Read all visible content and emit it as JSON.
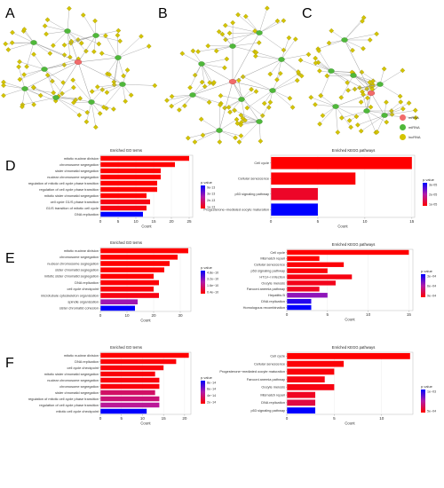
{
  "panel_labels": {
    "A": "A",
    "B": "B",
    "C": "C",
    "D": "D",
    "E": "E",
    "F": "F"
  },
  "network_legend": [
    {
      "label": "mRNA",
      "color": "#f26b6b"
    },
    {
      "label": "miRNA",
      "color": "#4fb83a"
    },
    {
      "label": "lncRNA",
      "color": "#d4c400"
    }
  ],
  "colors": {
    "bar_high": "#ff0000",
    "bar_low": "#0000ff",
    "bar_mid": "#b21aa8",
    "node_lnc": "#d4c400",
    "node_mi": "#4fb83a",
    "node_m": "#f26b6b",
    "edge": "#999999"
  },
  "chart_data": [
    {
      "panel": "D",
      "type": "bar",
      "title": "Enriched GO terms",
      "xlabel": "Count",
      "legend_title": "p.value",
      "legend_ticks": [
        "9e-13",
        "3e-13",
        "2e-13",
        "1e-13"
      ],
      "xticks": [
        0,
        5,
        10,
        15,
        20,
        25
      ],
      "xlim": [
        0,
        26
      ],
      "categories": [
        "mitotic nuclear division",
        "chromosome segregation",
        "sister chromatid segregation",
        "nuclear chromosome segregation",
        "regulation of mitotic cell cycle phase transition",
        "regulation of cell cycle phase transition",
        "mitotic sister chromatid segregation",
        "cell cycle G1/S phase transition",
        "G1/S transition of mitotic cell cycle",
        "DNA replication"
      ],
      "values": [
        25,
        21,
        17,
        17,
        16,
        16,
        13,
        14,
        13,
        12
      ],
      "shade": [
        0,
        0,
        0,
        0,
        0,
        0,
        0,
        0.05,
        0.05,
        1
      ]
    },
    {
      "panel": "D",
      "type": "bar",
      "title": "Enriched KEGG pathways",
      "xlabel": "Count",
      "legend_title": "p.value",
      "legend_ticks": [
        "3e-05",
        "2e-05",
        "1e-05"
      ],
      "xticks": [
        0,
        5,
        10,
        15
      ],
      "xlim": [
        0,
        15.3
      ],
      "categories": [
        "Cell cycle",
        "Cellular senescence",
        "p53 signaling pathway",
        "Progesterone−mediated oocyte maturation"
      ],
      "values": [
        15,
        9,
        5,
        5
      ],
      "shade": [
        0,
        0.02,
        0.12,
        1
      ]
    },
    {
      "panel": "E",
      "type": "bar",
      "title": "Enriched GO terms",
      "xlabel": "Count",
      "legend_title": "p.value",
      "legend_ticks": [
        "4.8e−10",
        "3.2e−10",
        "1.6e−10",
        "0.4e−10"
      ],
      "xticks": [
        0,
        10,
        20,
        30
      ],
      "xlim": [
        0,
        34
      ],
      "categories": [
        "mitotic nuclear division",
        "chromosome segregation",
        "nuclear chromosome segregation",
        "sister chromatid segregation",
        "mitotic sister chromatid segregation",
        "DNA replication",
        "cell cycle checkpoint",
        "microtubule cytoskeleton organization",
        "spindle organization",
        "sister chromatid cohesion"
      ],
      "values": [
        33,
        29,
        26,
        24,
        20,
        22,
        20,
        22,
        14,
        13
      ],
      "shade": [
        0,
        0,
        0,
        0,
        0,
        0.02,
        0.03,
        0.05,
        0.55,
        1
      ]
    },
    {
      "panel": "E",
      "type": "bar",
      "title": "Enriched KEGG pathways",
      "xlabel": "Count",
      "legend_title": "p.value",
      "legend_ticks": [
        "3e−04",
        "6e−04",
        "9e−04"
      ],
      "xticks": [
        0,
        5,
        10,
        15
      ],
      "xlim": [
        0,
        15.5
      ],
      "categories": [
        "Cell cycle",
        "Mismatch repair",
        "Cellular senescence",
        "p53 signaling pathway",
        "HTLV−I infection",
        "Oocyte meiosis",
        "Fanconi anemia pathway",
        "Hepatitis B",
        "DNA replication",
        "Homologous recombination"
      ],
      "values": [
        15,
        4,
        7,
        5,
        8,
        6,
        4,
        5,
        3,
        3
      ],
      "shade": [
        0,
        0,
        0.02,
        0.02,
        0.05,
        0.08,
        0.1,
        0.6,
        0.9,
        1
      ]
    },
    {
      "panel": "F",
      "type": "bar",
      "title": "Enriched GO terms",
      "xlabel": "Count",
      "legend_title": "p.value",
      "legend_ticks": [
        "8e−14",
        "6e−14",
        "4e−14",
        "2e−14"
      ],
      "xticks": [
        0,
        5,
        10,
        15,
        20
      ],
      "xlim": [
        0,
        21.5
      ],
      "categories": [
        "mitotic nuclear division",
        "DNA replication",
        "cell cycle checkpoint",
        "mitotic sister chromatid segregation",
        "nuclear chromosome segregation",
        "chromosome segregation",
        "sister chromatid segregation",
        "regulation of mitotic cell cycle phase transition",
        "regulation of cell cycle phase transition",
        "mitotic cell cycle checkpoint"
      ],
      "values": [
        21,
        18,
        15,
        13,
        14,
        14,
        13,
        14,
        14,
        11
      ],
      "shade": [
        0,
        0.02,
        0.03,
        0.03,
        0.03,
        0.03,
        0.3,
        0.35,
        0.45,
        1
      ]
    },
    {
      "panel": "F",
      "type": "bar",
      "title": "Enriched KEGG pathways",
      "xlabel": "Count",
      "legend_title": "p.value",
      "legend_ticks": [
        "1e−03",
        "5e−04"
      ],
      "xticks": [
        0,
        5,
        10
      ],
      "xlim": [
        0,
        13.3
      ],
      "categories": [
        "Cell cycle",
        "Cellular senescence",
        "Progesterone−mediated oocyte maturation",
        "Fanconi anemia pathway",
        "Oocyte meiosis",
        "Mismatch repair",
        "DNA replication",
        "p53 signaling pathway"
      ],
      "values": [
        13,
        6,
        5,
        4,
        5,
        3,
        3,
        3
      ],
      "shade": [
        0,
        0.02,
        0.03,
        0.05,
        0.05,
        0.1,
        0.2,
        1
      ]
    }
  ]
}
